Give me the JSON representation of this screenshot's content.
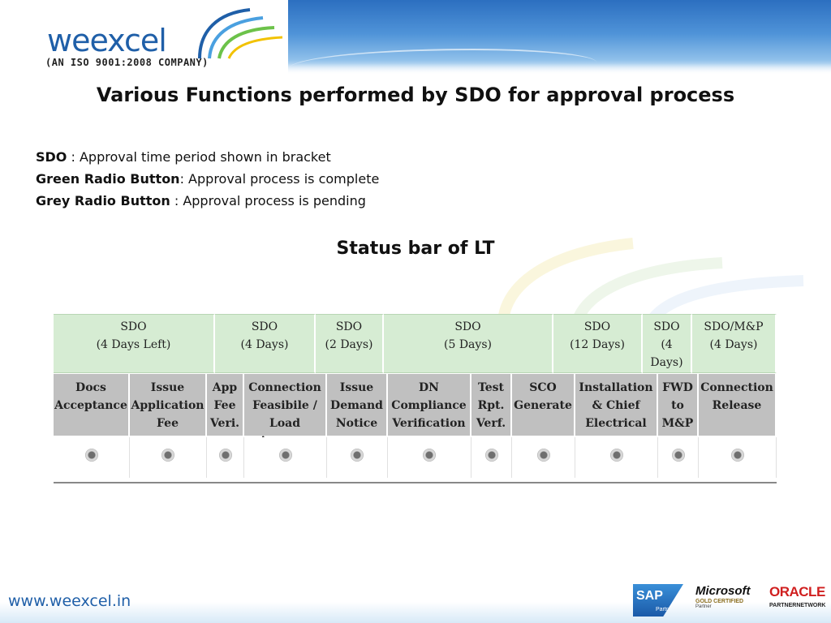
{
  "header": {
    "logo_word": "weexcel",
    "logo_subtitle": "(AN ISO 9001:2008 COMPANY)"
  },
  "title": "Various Functions performed by SDO for approval process",
  "legend": [
    {
      "term": "SDO",
      "desc": " : Approval time period shown in bracket"
    },
    {
      "term": "Green Radio Button",
      "desc": ": Approval  process is complete"
    },
    {
      "term": "Grey Radio Button",
      "desc": " : Approval  process is pending"
    }
  ],
  "status_heading": "Status bar of LT",
  "sdo_row": [
    {
      "line1": "SDO",
      "line2": "(4 Days Left)",
      "line3": ""
    },
    {
      "line1": "SDO",
      "line2": "(4 Days)",
      "line3": ""
    },
    {
      "line1": "SDO",
      "line2": "(2 Days)",
      "line3": ""
    },
    {
      "line1": "SDO",
      "line2": "(5 Days)",
      "line3": ""
    },
    {
      "line1": "SDO",
      "line2": "(12 Days)",
      "line3": ""
    },
    {
      "line1": "SDO",
      "line2": "(4",
      "line3": "Days)"
    },
    {
      "line1": "SDO/M&P",
      "line2": "(4 Days)",
      "line3": ""
    }
  ],
  "function_row": [
    {
      "l1": "Docs",
      "l2": "Acceptance",
      "l3": "",
      "l4": ""
    },
    {
      "l1": "Issue",
      "l2": "Application",
      "l3": "Fee",
      "l4": ""
    },
    {
      "l1": "App",
      "l2": "Fee",
      "l3": "Veri.",
      "l4": ""
    },
    {
      "l1": "Connection",
      "l2": "Feasibile /",
      "l3": "Load",
      "l4": "Approve"
    },
    {
      "l1": "Issue",
      "l2": "Demand",
      "l3": "Notice",
      "l4": ""
    },
    {
      "l1": "DN",
      "l2": "Compliance",
      "l3": "Verification",
      "l4": ""
    },
    {
      "l1": "Test",
      "l2": "Rpt.",
      "l3": "Verf.",
      "l4": ""
    },
    {
      "l1": "SCO",
      "l2": "Generate",
      "l3": "",
      "l4": ""
    },
    {
      "l1": "Installation",
      "l2": "& Chief",
      "l3": "Electrical",
      "l4": ""
    },
    {
      "l1": "FWD",
      "l2": "to",
      "l3": "M&P",
      "l4": ""
    },
    {
      "l1": "Connection",
      "l2": "Release",
      "l3": "",
      "l4": ""
    }
  ],
  "radio_status": [
    "pending",
    "pending",
    "pending",
    "pending",
    "pending",
    "pending",
    "pending",
    "pending",
    "pending",
    "pending",
    "pending"
  ],
  "footer": {
    "url": "www.weexcel.in",
    "sap": "SAP",
    "sap_sub": "Partner",
    "ms": "Microsoft",
    "ms_sub": "GOLD CERTIFIED",
    "ms_sub2": "Partner",
    "oracle": "ORACLE",
    "oracle_sub": "PARTNERNETWORK"
  },
  "colors": {
    "brand_blue": "#1f5fa8",
    "sdo_green": "#d6ecd3",
    "function_grey": "#c0c0c0",
    "oracle_red": "#d01f1f"
  }
}
